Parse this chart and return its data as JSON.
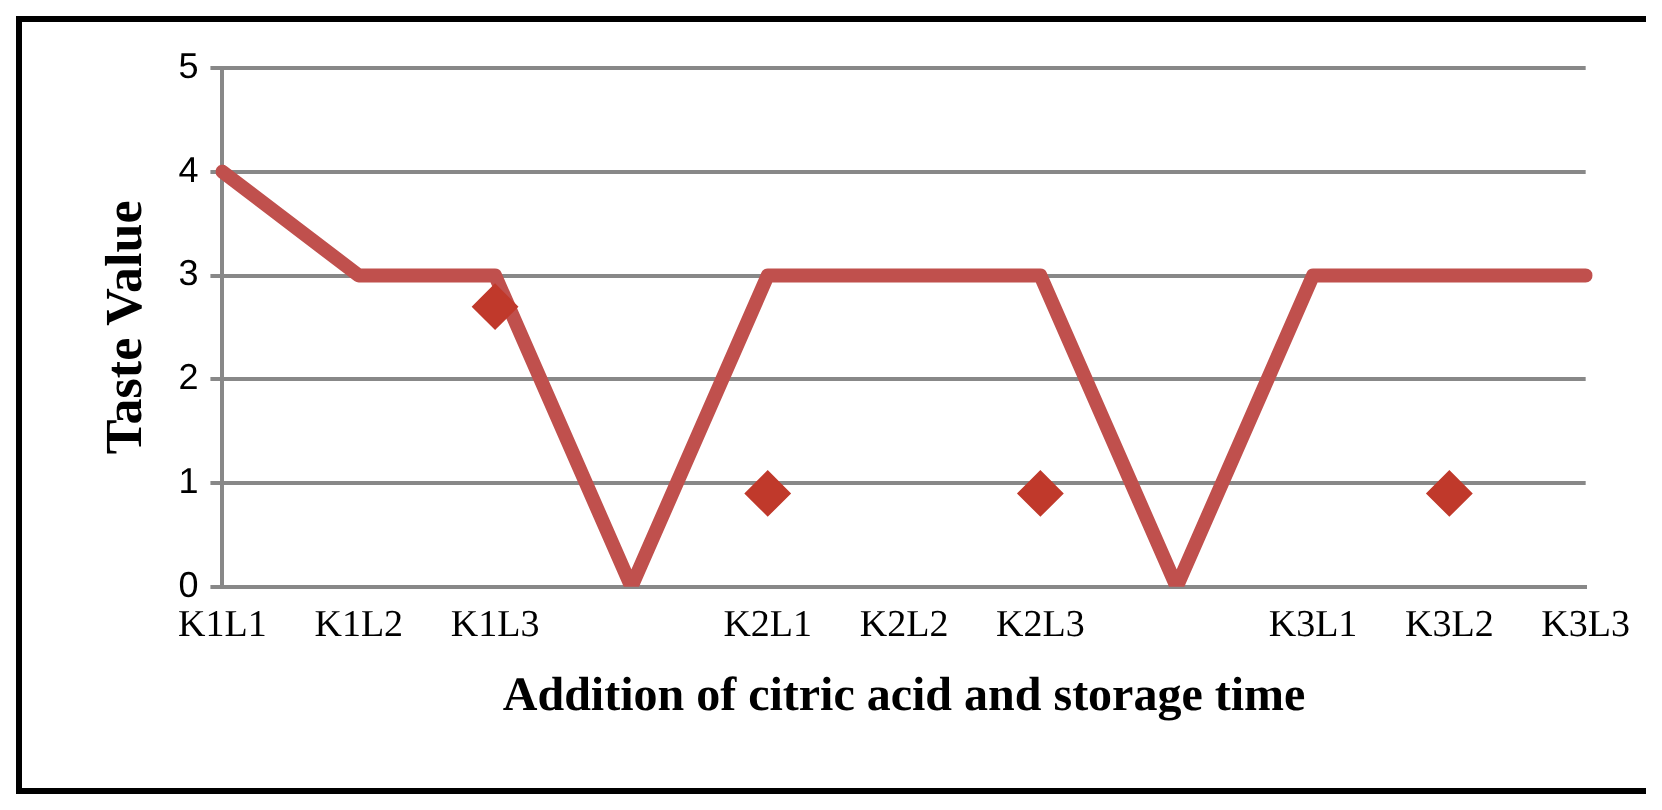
{
  "chart_data": {
    "type": "line",
    "xlabel": "Addition of citric acid and storage time",
    "ylabel": "Taste Value",
    "categories": [
      "K1L1",
      "K1L2",
      "K1L3",
      null,
      "K2L1",
      "K2L2",
      "K2L3",
      null,
      "K3L1",
      "K3L2",
      "K3L3"
    ],
    "ylim": [
      0,
      5
    ],
    "yticks": [
      0,
      1,
      2,
      3,
      4,
      5
    ],
    "grid": "y",
    "legend": false,
    "series": [
      {
        "type": "line",
        "color": "#c0504d",
        "values": [
          4,
          3,
          3,
          0,
          3,
          3,
          3,
          0,
          3,
          3,
          3
        ],
        "marker": "none"
      },
      {
        "type": "scatter",
        "color": "#c0392b",
        "marker": "diamond",
        "values": [
          null,
          null,
          2.7,
          null,
          0.9,
          null,
          0.9,
          null,
          null,
          0.9,
          null
        ]
      }
    ]
  }
}
